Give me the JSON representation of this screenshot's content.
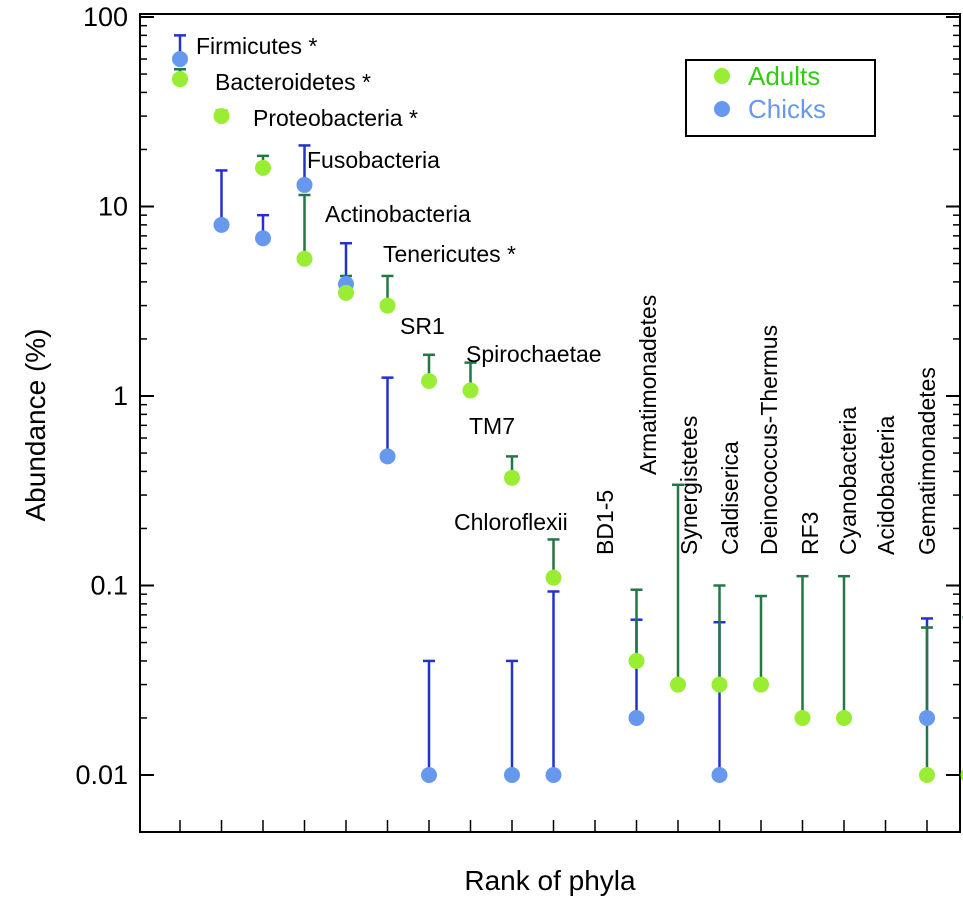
{
  "chart_data": {
    "type": "scatter",
    "xlabel": "Rank of phyla",
    "ylabel": "Abundance (%)",
    "y_scale": "log",
    "ylim": [
      0.01,
      100
    ],
    "y_ticks": [
      "0.01",
      "0.1",
      "1",
      "10",
      "100"
    ],
    "x_range": [
      0,
      20.5
    ],
    "legend": {
      "placement": "top-right",
      "entries": [
        {
          "name": "Adults",
          "color": "#99ee33"
        },
        {
          "name": "Chicks",
          "color": "#6699ee"
        }
      ]
    },
    "colors": {
      "adults_marker": "#99ee33",
      "adults_errorbar": "#227744",
      "chicks_marker": "#6699ee",
      "chicks_errorbar": "#2233cc",
      "adults_text": "#33cc11",
      "chicks_text": "#6699ee"
    },
    "phyla": [
      {
        "label": "Firmicutes *",
        "adults": {
          "x": 0,
          "y": 47,
          "err": 53
        },
        "chicks": {
          "x": 0,
          "y": 60,
          "err": 80
        }
      },
      {
        "label": "Bacteroidetes *",
        "adults": {
          "x": 0,
          "y": 47,
          "err": 53
        },
        "chicks": {
          "x": 1,
          "y": 8,
          "err": 15.5
        }
      },
      {
        "label": "Proteobacteria *",
        "adults": {
          "x": 1,
          "y": 30,
          "err": 32
        },
        "chicks": {
          "x": 2,
          "y": 6.8,
          "err": 9
        }
      },
      {
        "label": "Fusobacteria",
        "adults": {
          "x": 2,
          "y": 16,
          "err": 18.5
        },
        "chicks": {
          "x": 3,
          "y": 13,
          "err": 21
        }
      },
      {
        "label": "Actinobacteria",
        "adults": {
          "x": 3,
          "y": 5.3,
          "err": 11.5
        },
        "chicks": {
          "x": 4,
          "y": 3.9,
          "err": 6.4
        }
      },
      {
        "label": "Tenericutes *",
        "adults": {
          "x": 4,
          "y": 3.5,
          "err": 4.3
        },
        "chicks": {
          "x": 5,
          "y": 0.48,
          "err": 1.25
        }
      },
      {
        "label": "SR1",
        "adults": {
          "x": 5,
          "y": 3.0,
          "err": 4.3
        },
        "chicks": {
          "x": 6,
          "y": 0.01,
          "err": 0.04
        }
      },
      {
        "label": "Spirochaetae",
        "adults": {
          "x": 6,
          "y": 1.2,
          "err": 1.65
        },
        "chicks": {
          "x": 8,
          "y": 0.01,
          "err": 0.04
        }
      },
      {
        "label": "TM7",
        "adults": {
          "x": 7,
          "y": 1.07,
          "err": 1.5
        },
        "chicks": {
          "x": 9,
          "y": 0.01,
          "err": 0.093
        }
      },
      {
        "label": "Chloroflexii",
        "adults": {
          "x": 8,
          "y": 0.37,
          "err": 0.48
        },
        "chicks": null
      },
      {
        "label": "BD1-5",
        "adults": {
          "x": 9,
          "y": 0.11,
          "err": 0.175
        },
        "chicks": {
          "x": 11,
          "y": 0.02,
          "err": 0.066
        }
      },
      {
        "label": "Armatimonadetes",
        "adults": {
          "x": 11,
          "y": 0.04,
          "err": 0.095
        },
        "chicks": null
      },
      {
        "label": "Synergistetes",
        "adults": {
          "x": 12,
          "y": 0.03,
          "err": 0.34
        },
        "chicks": {
          "x": 13,
          "y": 0.01,
          "err": 0.064
        }
      },
      {
        "label": "Caldiserica",
        "adults": {
          "x": 13,
          "y": 0.03,
          "err": 0.1
        },
        "chicks": null
      },
      {
        "label": "Deinococcus-Thermus",
        "adults": {
          "x": 14,
          "y": 0.03,
          "err": 0.088
        },
        "chicks": null
      },
      {
        "label": "RF3",
        "adults": {
          "x": 15,
          "y": 0.02,
          "err": 0.112
        },
        "chicks": null
      },
      {
        "label": "Cyanobacteria",
        "adults": {
          "x": 16,
          "y": 0.02,
          "err": 0.112
        },
        "chicks": {
          "x": 18,
          "y": 0.02,
          "err": 0.067
        }
      },
      {
        "label": "Acidobacteria",
        "adults": {
          "x": 18,
          "y": 0.01,
          "err": 0.06
        },
        "chicks": null
      },
      {
        "label": "Gematimonadetes",
        "adults": {
          "x": 19,
          "y": 0.01,
          "err": 0.068
        },
        "chicks": null
      },
      {
        "label": "",
        "adults": {
          "x": 20,
          "y": 0.01,
          "err": 0.046
        },
        "chicks": null
      }
    ]
  }
}
